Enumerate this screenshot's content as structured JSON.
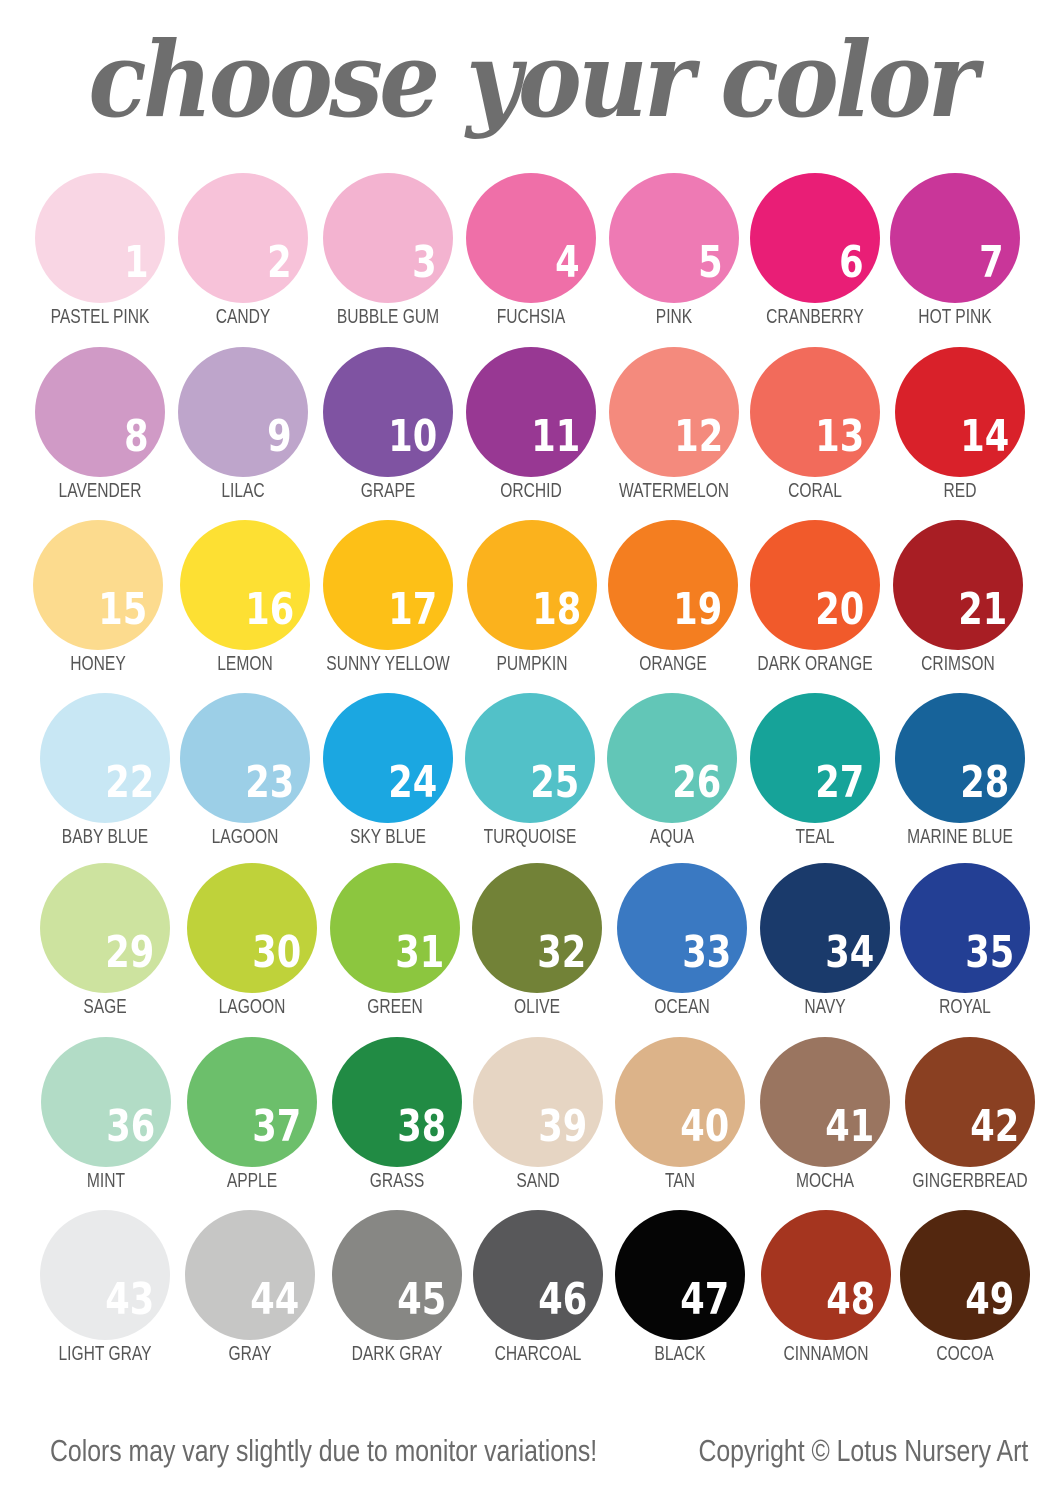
{
  "title": "choose your color",
  "colors": [
    {
      "number": "1",
      "name": "PASTEL PINK",
      "hex": "#f9d6e4"
    },
    {
      "number": "2",
      "name": "CANDY",
      "hex": "#f7c2d9"
    },
    {
      "number": "3",
      "name": "BUBBLE GUM",
      "hex": "#f3b3d0"
    },
    {
      "number": "4",
      "name": "FUCHSIA",
      "hex": "#ef6fa8"
    },
    {
      "number": "5",
      "name": "PINK",
      "hex": "#ee7ab4"
    },
    {
      "number": "6",
      "name": "CRANBERRY",
      "hex": "#e91e76"
    },
    {
      "number": "7",
      "name": "HOT PINK",
      "hex": "#c93699"
    },
    {
      "number": "8",
      "name": "LAVENDER",
      "hex": "#d09ac6"
    },
    {
      "number": "9",
      "name": "LILAC",
      "hex": "#bea5cb"
    },
    {
      "number": "10",
      "name": "GRAPE",
      "hex": "#7f53a2"
    },
    {
      "number": "11",
      "name": "ORCHID",
      "hex": "#983893"
    },
    {
      "number": "12",
      "name": "WATERMELON",
      "hex": "#f48a7d"
    },
    {
      "number": "13",
      "name": "CORAL",
      "hex": "#f26b5b"
    },
    {
      "number": "14",
      "name": "RED",
      "hex": "#d9212a"
    },
    {
      "number": "15",
      "name": "HONEY",
      "hex": "#fcdb8e"
    },
    {
      "number": "16",
      "name": "LEMON",
      "hex": "#fde033"
    },
    {
      "number": "17",
      "name": "SUNNY YELLOW",
      "hex": "#fdc017"
    },
    {
      "number": "18",
      "name": "PUMPKIN",
      "hex": "#fbb21d"
    },
    {
      "number": "19",
      "name": "ORANGE",
      "hex": "#f47e20"
    },
    {
      "number": "20",
      "name": "DARK ORANGE",
      "hex": "#f15a2b"
    },
    {
      "number": "21",
      "name": "CRIMSON",
      "hex": "#a81e24"
    },
    {
      "number": "22",
      "name": "BABY BLUE",
      "hex": "#c8e7f4"
    },
    {
      "number": "23",
      "name": "LAGOON",
      "hex": "#9ccfe7"
    },
    {
      "number": "24",
      "name": "SKY BLUE",
      "hex": "#1ba7e1"
    },
    {
      "number": "25",
      "name": "TURQUOISE",
      "hex": "#52c1c8"
    },
    {
      "number": "26",
      "name": "AQUA",
      "hex": "#62c6b7"
    },
    {
      "number": "27",
      "name": "TEAL",
      "hex": "#16a399"
    },
    {
      "number": "28",
      "name": "MARINE BLUE",
      "hex": "#17639a"
    },
    {
      "number": "29",
      "name": "SAGE",
      "hex": "#cde39f"
    },
    {
      "number": "30",
      "name": "LAGOON",
      "hex": "#bfd23a"
    },
    {
      "number": "31",
      "name": "GREEN",
      "hex": "#8cc63f"
    },
    {
      "number": "32",
      "name": "OLIVE",
      "hex": "#728237"
    },
    {
      "number": "33",
      "name": "OCEAN",
      "hex": "#3a79c2"
    },
    {
      "number": "34",
      "name": "NAVY",
      "hex": "#1a3a6b"
    },
    {
      "number": "35",
      "name": "ROYAL",
      "hex": "#233f94"
    },
    {
      "number": "36",
      "name": "MINT",
      "hex": "#b2dcc6"
    },
    {
      "number": "37",
      "name": "APPLE",
      "hex": "#6cbf6b"
    },
    {
      "number": "38",
      "name": "GRASS",
      "hex": "#218b44"
    },
    {
      "number": "39",
      "name": "SAND",
      "hex": "#e6d5c3"
    },
    {
      "number": "40",
      "name": "TAN",
      "hex": "#dcb389"
    },
    {
      "number": "41",
      "name": "MOCHA",
      "hex": "#9a7560"
    },
    {
      "number": "42",
      "name": "GINGERBREAD",
      "hex": "#8a4022"
    },
    {
      "number": "43",
      "name": "LIGHT GRAY",
      "hex": "#e9eaeb"
    },
    {
      "number": "44",
      "name": "GRAY",
      "hex": "#c6c6c5"
    },
    {
      "number": "45",
      "name": "DARK GRAY",
      "hex": "#878784"
    },
    {
      "number": "46",
      "name": "CHARCOAL",
      "hex": "#58585a"
    },
    {
      "number": "47",
      "name": "BLACK",
      "hex": "#050505"
    },
    {
      "number": "48",
      "name": "CINNAMON",
      "hex": "#a5351f"
    },
    {
      "number": "49",
      "name": "COCOA",
      "hex": "#53270f"
    }
  ],
  "footer": {
    "note": "Colors may vary slightly due to monitor variations!",
    "copyright": "Copyright © Lotus Nursery Art"
  }
}
